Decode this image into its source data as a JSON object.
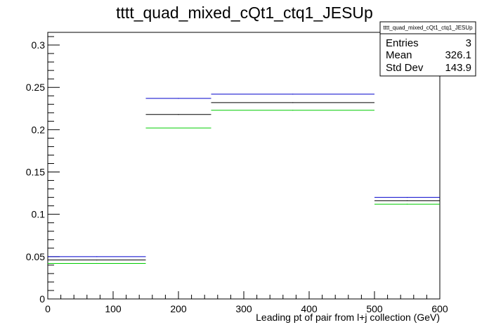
{
  "chart_data": {
    "type": "histogram",
    "title": "tttt_quad_mixed_cQt1_ctq1_JESUp",
    "xlabel": "Leading pt of pair from l+j collection (GeV)",
    "ylabel": "",
    "xlim": [
      0,
      600
    ],
    "ylim": [
      0,
      0.315
    ],
    "x_ticks": [
      0,
      100,
      200,
      300,
      400,
      500,
      600
    ],
    "x_tick_labels": [
      "0",
      "100",
      "200",
      "300",
      "400",
      "500",
      "600"
    ],
    "y_ticks": [
      0,
      0.05,
      0.1,
      0.15,
      0.2,
      0.25,
      0.3
    ],
    "y_tick_labels": [
      "0",
      "0.05",
      "0.1",
      "0.15",
      "0.2",
      "0.25",
      "0.3"
    ],
    "bin_edges": [
      0,
      150,
      250,
      500,
      600
    ],
    "series": [
      {
        "color": "#0000cc",
        "values": [
          0.05,
          0.237,
          0.242,
          0.12
        ]
      },
      {
        "color": "#000000",
        "values": [
          0.046,
          0.218,
          0.232,
          0.116
        ]
      },
      {
        "color": "#00cc00",
        "values": [
          0.042,
          0.202,
          0.223,
          0.112
        ]
      }
    ],
    "grid": false,
    "stats_box": {
      "title": "tttt_quad_mixed_cQt1_ctq1_JESUp",
      "rows": [
        {
          "label": "Entries",
          "value": "3"
        },
        {
          "label": "Mean",
          "value": "326.1"
        },
        {
          "label": "Std Dev",
          "value": "143.9"
        }
      ]
    }
  }
}
